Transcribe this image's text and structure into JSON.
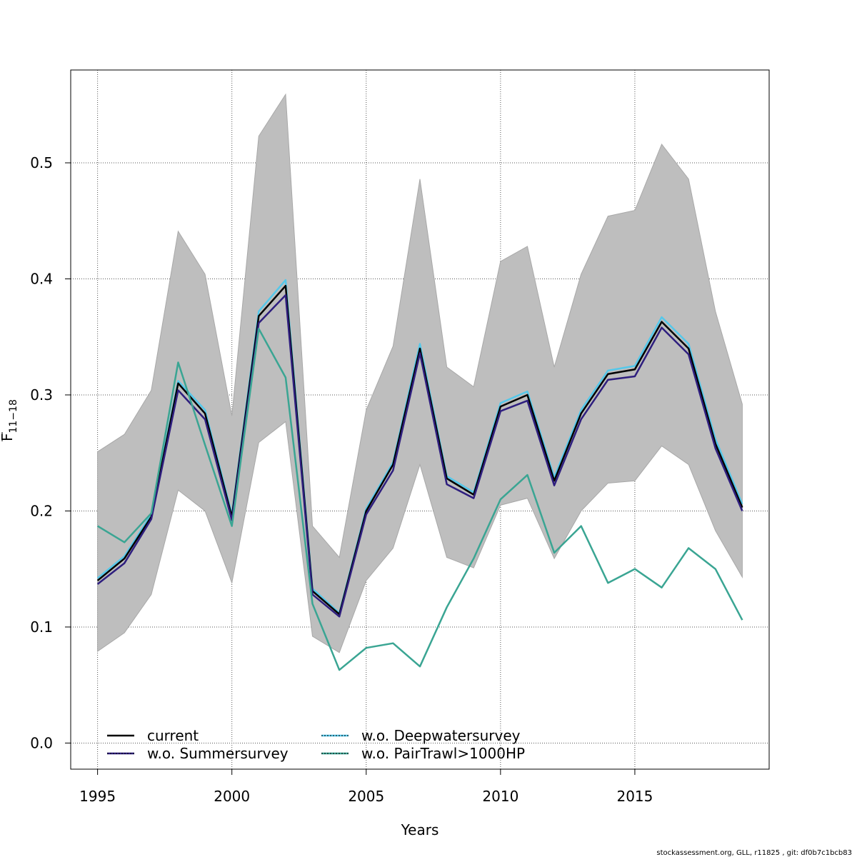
{
  "chart_data": {
    "type": "line",
    "xlabel": "Years",
    "ylabel": "F",
    "ylabel_sub": "11−18",
    "xlim": [
      1994,
      2020
    ],
    "ylim": [
      -0.0225,
      0.58
    ],
    "xticks": [
      1995,
      2000,
      2005,
      2010,
      2015
    ],
    "yticks": [
      0.0,
      0.1,
      0.2,
      0.3,
      0.4,
      0.5
    ],
    "ytick_labels": [
      "0.0",
      "0.1",
      "0.2",
      "0.3",
      "0.4",
      "0.5"
    ],
    "grid": true,
    "legend_position": "bottom-left",
    "x": [
      1995,
      1996,
      1997,
      1998,
      1999,
      2000,
      2001,
      2002,
      2003,
      2004,
      2005,
      2006,
      2007,
      2008,
      2009,
      2010,
      2011,
      2012,
      2013,
      2014,
      2015,
      2016,
      2017,
      2018,
      2019
    ],
    "band": {
      "color": "#bebebe",
      "upper": [
        0.251,
        0.266,
        0.304,
        0.441,
        0.404,
        0.282,
        0.523,
        0.559,
        0.187,
        0.16,
        0.287,
        0.342,
        0.486,
        0.324,
        0.307,
        0.415,
        0.428,
        0.324,
        0.404,
        0.454,
        0.459,
        0.516,
        0.486,
        0.372,
        0.292
      ],
      "lower": [
        0.079,
        0.095,
        0.128,
        0.218,
        0.2,
        0.138,
        0.259,
        0.277,
        0.092,
        0.078,
        0.14,
        0.168,
        0.24,
        0.16,
        0.151,
        0.205,
        0.211,
        0.159,
        0.2,
        0.224,
        0.226,
        0.256,
        0.24,
        0.183,
        0.143
      ]
    },
    "series": [
      {
        "name": "w.o. Deepwatersurvey",
        "color": "#55c8ea",
        "dash": "none",
        "width": 2.5,
        "values": [
          0.142,
          0.161,
          0.197,
          0.312,
          0.287,
          0.197,
          0.372,
          0.399,
          0.133,
          0.112,
          0.202,
          0.242,
          0.344,
          0.23,
          0.216,
          0.293,
          0.303,
          0.229,
          0.287,
          0.321,
          0.325,
          0.367,
          0.344,
          0.262,
          0.206
        ]
      },
      {
        "name": "current",
        "color": "#000000",
        "dash": "none",
        "width": 2.5,
        "values": [
          0.14,
          0.159,
          0.195,
          0.31,
          0.284,
          0.195,
          0.368,
          0.394,
          0.131,
          0.111,
          0.2,
          0.24,
          0.34,
          0.228,
          0.214,
          0.29,
          0.3,
          0.226,
          0.284,
          0.318,
          0.322,
          0.363,
          0.34,
          0.258,
          0.203
        ]
      },
      {
        "name": "w.o. Summersurvey",
        "color": "#2e1e7e",
        "dash": "none",
        "width": 2.5,
        "values": [
          0.137,
          0.155,
          0.193,
          0.304,
          0.279,
          0.192,
          0.362,
          0.386,
          0.128,
          0.109,
          0.197,
          0.235,
          0.336,
          0.223,
          0.211,
          0.286,
          0.295,
          0.222,
          0.279,
          0.313,
          0.316,
          0.358,
          0.335,
          0.254,
          0.2
        ]
      },
      {
        "name": "w.o. PairTrawl>1000HP",
        "color": "#3aa593",
        "dash": "none",
        "width": 2.5,
        "values": [
          0.187,
          0.173,
          0.198,
          0.328,
          0.257,
          0.187,
          0.357,
          0.315,
          0.12,
          0.063,
          0.082,
          0.086,
          0.066,
          0.117,
          0.159,
          0.21,
          0.231,
          0.164,
          0.187,
          0.138,
          0.15,
          0.134,
          0.168,
          0.15,
          0.106
        ]
      }
    ],
    "legend": [
      {
        "name": "current",
        "color": "#000000",
        "dashed": false
      },
      {
        "name": "w.o. Summersurvey",
        "color": "#2e1e7e",
        "dashed": true
      },
      {
        "name": "w.o. Deepwatersurvey",
        "color": "#55c8ea",
        "dashed": true
      },
      {
        "name": "w.o. PairTrawl>1000HP",
        "color": "#3aa593",
        "dashed": true
      }
    ],
    "footer": "stockassessment.org, GLL, r11825 , git: df0b7c1bcb83"
  }
}
